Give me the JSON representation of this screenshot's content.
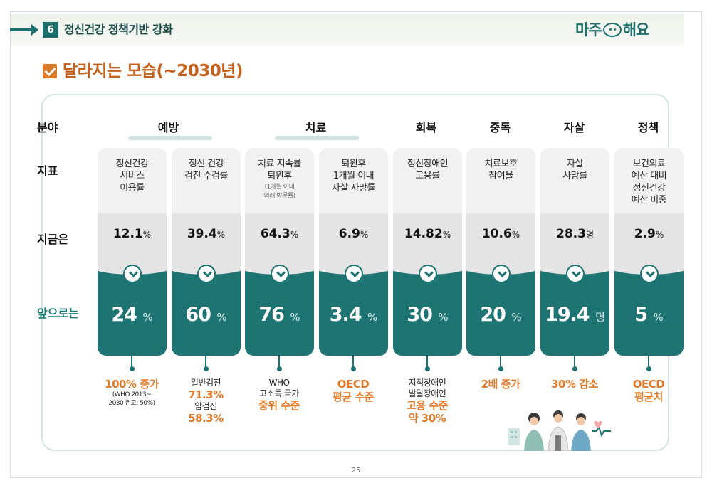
{
  "header": {
    "section_number": "6",
    "section_title": "정신건강 정책기반 강화",
    "logo_left": "마주",
    "logo_right": "해요"
  },
  "page_title": "달라지는 모습(~2030년)",
  "row_labels": {
    "category": "분야",
    "indicator": "지표",
    "current": "지금은",
    "target": "앞으로는"
  },
  "categories": [
    {
      "label": "예방"
    },
    {
      "label": "치료"
    },
    {
      "label": "회복"
    },
    {
      "label": "중독"
    },
    {
      "label": "자살"
    },
    {
      "label": "정책"
    }
  ],
  "columns": [
    {
      "indicator": [
        "정신건강",
        "서비스",
        "이용률"
      ],
      "indicator_note": [],
      "current": "12.1",
      "current_unit": "%",
      "target": "24",
      "target_unit": "%",
      "note": [
        {
          "t": "o",
          "v": "100% 증가"
        },
        {
          "t": "s",
          "v": "(WHO 2013~"
        },
        {
          "t": "s",
          "v": "2030 권고: 50%)"
        }
      ]
    },
    {
      "indicator": [
        "정신 건강",
        "검진 수검률"
      ],
      "indicator_note": [],
      "current": "39.4",
      "current_unit": "%",
      "target": "60",
      "target_unit": "%",
      "note": [
        {
          "t": "k",
          "v": "일반검진"
        },
        {
          "t": "o",
          "v": "71.3%"
        },
        {
          "t": "k",
          "v": "암검진"
        },
        {
          "t": "o",
          "v": "58.3%"
        }
      ]
    },
    {
      "indicator": [
        "치료 지속률",
        "퇴원후"
      ],
      "indicator_note": [
        "(1개월 이내",
        "외래 방문률)"
      ],
      "current": "64.3",
      "current_unit": "%",
      "target": "76",
      "target_unit": "%",
      "note": [
        {
          "t": "k",
          "v": "WHO"
        },
        {
          "t": "k",
          "v": "고소득 국가"
        },
        {
          "t": "o",
          "v": "중위 수준"
        }
      ]
    },
    {
      "indicator": [
        "퇴원후",
        "1개월 이내",
        "자살 사망률"
      ],
      "indicator_note": [],
      "current": "6.9",
      "current_unit": "%",
      "target": "3.4",
      "target_unit": "%",
      "note": [
        {
          "t": "o",
          "v": "OECD"
        },
        {
          "t": "o",
          "v": "평균 수준"
        }
      ]
    },
    {
      "indicator": [
        "정신장애인",
        "고용률"
      ],
      "indicator_note": [],
      "current": "14.82",
      "current_unit": "%",
      "target": "30",
      "target_unit": "%",
      "note": [
        {
          "t": "k",
          "v": "지적장애인"
        },
        {
          "t": "k",
          "v": "발달장애인"
        },
        {
          "t": "o",
          "v": "고용 수준"
        },
        {
          "t": "o",
          "v": "약 30%"
        }
      ]
    },
    {
      "indicator": [
        "치료보호",
        "참여율"
      ],
      "indicator_note": [],
      "current": "10.6",
      "current_unit": "%",
      "target": "20",
      "target_unit": "%",
      "note": [
        {
          "t": "o",
          "v": "2배 증가"
        }
      ]
    },
    {
      "indicator": [
        "자살",
        "사망률"
      ],
      "indicator_note": [],
      "current": "28.3",
      "current_unit": "명",
      "target": "19.4",
      "target_unit": "명",
      "note": [
        {
          "t": "o",
          "v": "30% 감소"
        }
      ]
    },
    {
      "indicator": [
        "보건의료",
        "예산 대비",
        "정신건강",
        "예산 비중"
      ],
      "indicator_note": [],
      "current": "2.9",
      "current_unit": "%",
      "target": "5",
      "target_unit": "%",
      "note": [
        {
          "t": "o",
          "v": "OECD"
        },
        {
          "t": "o",
          "v": "평균치"
        }
      ]
    }
  ],
  "page_number": "25",
  "colors": {
    "teal": "#1e7472",
    "orange": "#e07a28",
    "title_orange": "#c4621d"
  }
}
